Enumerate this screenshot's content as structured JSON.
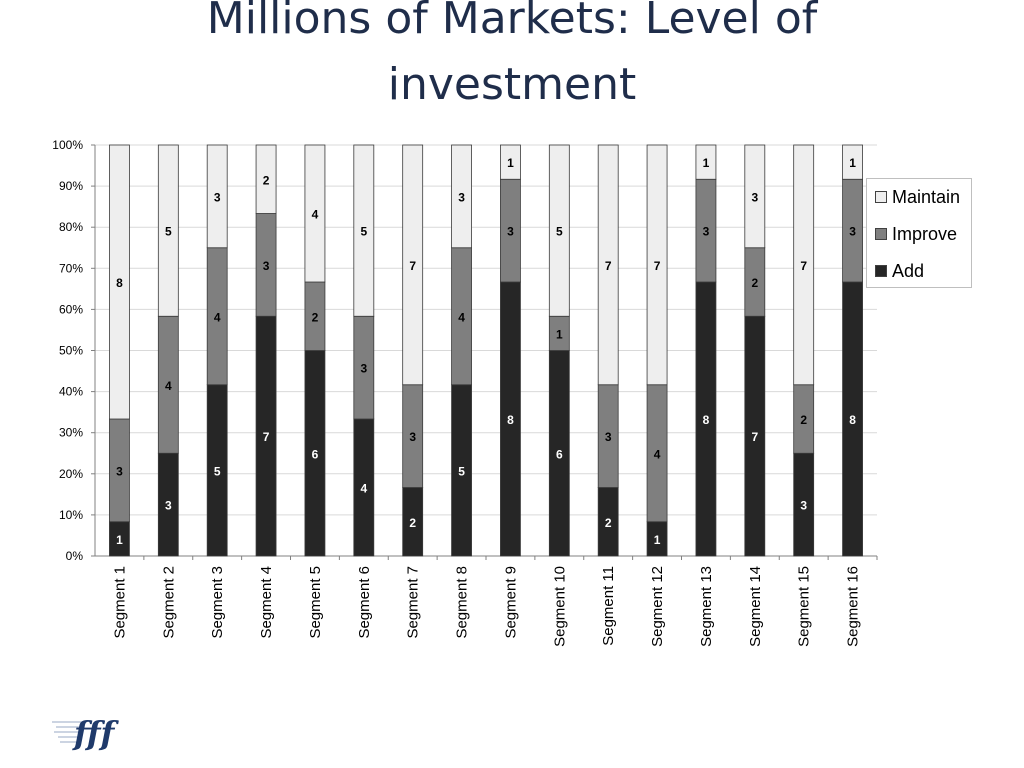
{
  "title": [
    "Millions of Markets: Level of",
    "investment"
  ],
  "chart_data": {
    "type": "bar",
    "stacked": "percent",
    "title": "",
    "xlabel": "",
    "ylabel": "",
    "ylim": [
      0,
      100
    ],
    "y_ticks": [
      "0%",
      "10%",
      "20%",
      "30%",
      "40%",
      "50%",
      "60%",
      "70%",
      "80%",
      "90%",
      "100%"
    ],
    "grid": true,
    "legend_position": "right",
    "categories": [
      "Segment 1",
      "Segment 2",
      "Segment 3",
      "Segment 4",
      "Segment 5",
      "Segment 6",
      "Segment 7",
      "Segment 8",
      "Segment 9",
      "Segment 10",
      "Segment 11",
      "Segment 12",
      "Segment 13",
      "Segment 14",
      "Segment 15",
      "Segment 16"
    ],
    "series": [
      {
        "name": "Add",
        "color": "#262626",
        "values": [
          1,
          3,
          5,
          7,
          6,
          4,
          2,
          5,
          8,
          6,
          2,
          1,
          8,
          7,
          3,
          8
        ]
      },
      {
        "name": "Improve",
        "color": "#7f7f7f",
        "values": [
          3,
          4,
          4,
          3,
          2,
          3,
          3,
          4,
          3,
          1,
          3,
          4,
          3,
          2,
          2,
          3
        ]
      },
      {
        "name": "Maintain",
        "color": "#eeeeee",
        "values": [
          8,
          5,
          3,
          2,
          4,
          5,
          7,
          3,
          1,
          5,
          7,
          7,
          1,
          3,
          7,
          1
        ]
      }
    ],
    "label_colors": {
      "Add": "#ffffff",
      "Improve": "#000000",
      "Maintain": "#000000"
    }
  },
  "legend": [
    {
      "label": "Maintain",
      "color": "#eeeeee"
    },
    {
      "label": "Improve",
      "color": "#7f7f7f"
    },
    {
      "label": "Add",
      "color": "#262626"
    }
  ],
  "logo": {
    "text": "fff",
    "icon": "fff-logo-icon",
    "color": "#1f3a6b"
  }
}
